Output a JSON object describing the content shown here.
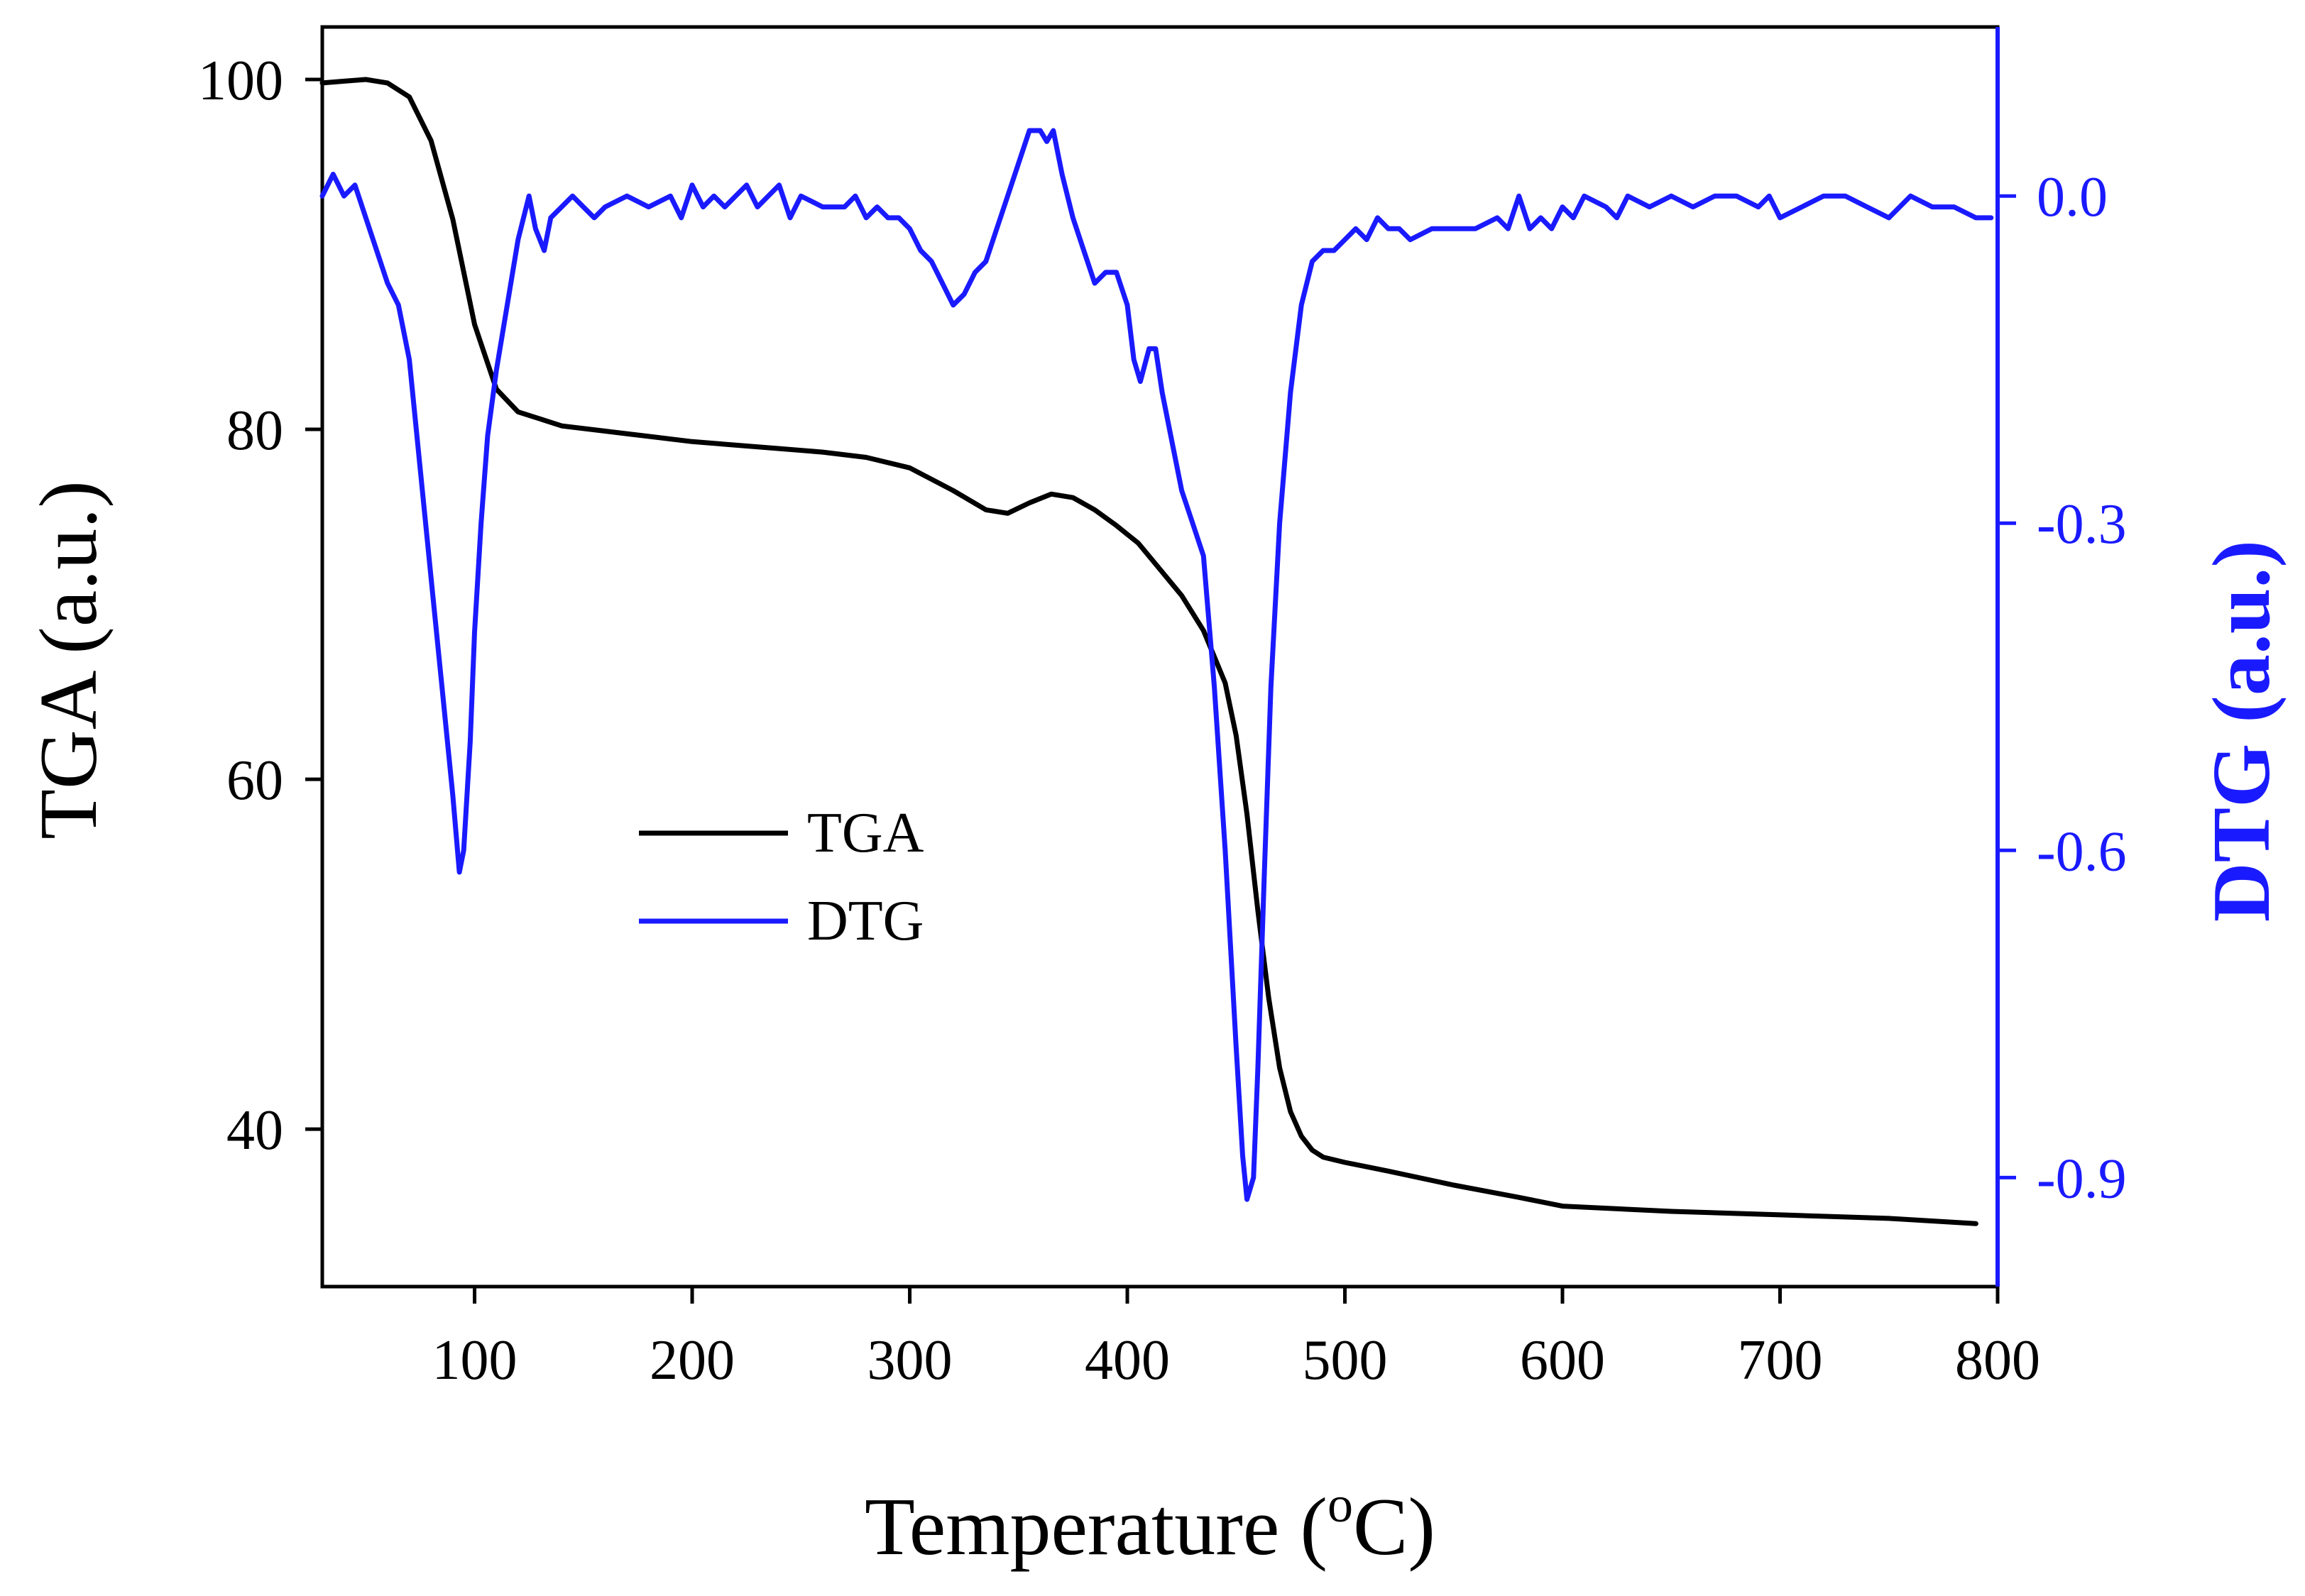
{
  "chart_data": {
    "type": "line",
    "title": "",
    "xlabel": "Temperature (",
    "xlabel_superscript": "o",
    "xlabel_suffix": "C)",
    "ylabel_left": "TGA (a.u.)",
    "ylabel_right": "DTG (a.u.)",
    "xlim": [
      30,
      800
    ],
    "ylim_left": [
      31,
      103
    ],
    "ylim_right": [
      -1.0,
      0.155
    ],
    "x_ticks": [
      100,
      200,
      300,
      400,
      500,
      600,
      700,
      800
    ],
    "x_tick_labels": [
      "100",
      "200",
      "300",
      "400",
      "500",
      "600",
      "700",
      "800"
    ],
    "y_left_ticks": [
      40,
      60,
      80,
      100
    ],
    "y_left_tick_labels": [
      "40",
      "60",
      "80",
      "100"
    ],
    "y_right_ticks": [
      -0.9,
      -0.6,
      -0.3,
      0.0
    ],
    "y_right_tick_labels": [
      "-0.9",
      "-0.6",
      "-0.3",
      "0.0"
    ],
    "legend_position": "center-left",
    "colors": {
      "tga": "#000000",
      "dtg": "#1a1aff",
      "axis": "#000000",
      "right_axis": "#1a1aff"
    },
    "series": [
      {
        "name": "TGA",
        "axis": "left",
        "x": [
          30,
          40,
          50,
          60,
          70,
          80,
          90,
          100,
          110,
          120,
          130,
          140,
          160,
          180,
          200,
          220,
          240,
          260,
          280,
          300,
          320,
          335,
          345,
          355,
          365,
          375,
          385,
          395,
          405,
          415,
          425,
          435,
          445,
          450,
          455,
          460,
          465,
          470,
          475,
          480,
          485,
          490,
          500,
          520,
          550,
          580,
          600,
          650,
          700,
          750,
          790
        ],
        "values": [
          99.8,
          99.9,
          100.0,
          99.8,
          99.0,
          96.5,
          92.0,
          86.0,
          82.3,
          81.0,
          80.6,
          80.2,
          79.9,
          79.6,
          79.3,
          79.1,
          78.9,
          78.7,
          78.4,
          77.8,
          76.5,
          75.4,
          75.2,
          75.8,
          76.3,
          76.1,
          75.4,
          74.5,
          73.5,
          72.0,
          70.5,
          68.5,
          65.5,
          62.5,
          58.0,
          52.5,
          47.5,
          43.5,
          41.0,
          39.6,
          38.8,
          38.4,
          38.1,
          37.6,
          36.8,
          36.1,
          35.6,
          35.3,
          35.1,
          34.9,
          34.6
        ]
      },
      {
        "name": "DTG",
        "axis": "right",
        "x": [
          30,
          35,
          40,
          45,
          50,
          55,
          60,
          65,
          70,
          75,
          80,
          85,
          90,
          93,
          95,
          98,
          100,
          103,
          106,
          110,
          115,
          120,
          125,
          128,
          132,
          135,
          140,
          145,
          150,
          155,
          160,
          170,
          180,
          190,
          195,
          200,
          205,
          210,
          215,
          220,
          225,
          230,
          235,
          240,
          245,
          250,
          260,
          270,
          275,
          280,
          285,
          290,
          295,
          300,
          305,
          310,
          315,
          320,
          325,
          330,
          335,
          340,
          345,
          350,
          355,
          360,
          363,
          366,
          370,
          375,
          380,
          385,
          390,
          395,
          400,
          403,
          406,
          410,
          413,
          416,
          420,
          425,
          430,
          435,
          440,
          445,
          450,
          453,
          455,
          458,
          460,
          463,
          466,
          470,
          475,
          480,
          485,
          490,
          495,
          500,
          505,
          510,
          515,
          520,
          525,
          530,
          540,
          550,
          560,
          570,
          575,
          580,
          585,
          590,
          595,
          600,
          605,
          610,
          620,
          625,
          630,
          640,
          650,
          660,
          670,
          680,
          690,
          695,
          700,
          710,
          720,
          730,
          740,
          750,
          760,
          770,
          780,
          790,
          797
        ],
        "values": [
          0.0,
          0.02,
          0.0,
          0.01,
          -0.02,
          -0.05,
          -0.08,
          -0.1,
          -0.15,
          -0.25,
          -0.35,
          -0.45,
          -0.55,
          -0.62,
          -0.6,
          -0.5,
          -0.4,
          -0.3,
          -0.22,
          -0.16,
          -0.1,
          -0.04,
          0.0,
          -0.03,
          -0.05,
          -0.02,
          -0.01,
          0.0,
          -0.01,
          -0.02,
          -0.01,
          0.0,
          -0.01,
          0.0,
          -0.02,
          0.01,
          -0.01,
          0.0,
          -0.01,
          0.0,
          0.01,
          -0.01,
          0.0,
          0.01,
          -0.02,
          0.0,
          -0.01,
          -0.01,
          0.0,
          -0.02,
          -0.01,
          -0.02,
          -0.02,
          -0.03,
          -0.05,
          -0.06,
          -0.08,
          -0.1,
          -0.09,
          -0.07,
          -0.06,
          -0.03,
          0.0,
          0.03,
          0.06,
          0.06,
          0.05,
          0.06,
          0.02,
          -0.02,
          -0.05,
          -0.08,
          -0.07,
          -0.07,
          -0.1,
          -0.15,
          -0.17,
          -0.14,
          -0.14,
          -0.18,
          -0.22,
          -0.27,
          -0.3,
          -0.33,
          -0.45,
          -0.6,
          -0.78,
          -0.88,
          -0.92,
          -0.9,
          -0.8,
          -0.62,
          -0.45,
          -0.3,
          -0.18,
          -0.1,
          -0.06,
          -0.05,
          -0.05,
          -0.04,
          -0.03,
          -0.04,
          -0.02,
          -0.03,
          -0.03,
          -0.04,
          -0.03,
          -0.03,
          -0.03,
          -0.02,
          -0.03,
          0.0,
          -0.03,
          -0.02,
          -0.03,
          -0.01,
          -0.02,
          0.0,
          -0.01,
          -0.02,
          0.0,
          -0.01,
          0.0,
          -0.01,
          0.0,
          0.0,
          -0.01,
          0.0,
          -0.02,
          -0.01,
          0.0,
          0.0,
          -0.01,
          -0.02,
          0.0,
          -0.01,
          -0.01,
          -0.02,
          -0.02
        ]
      }
    ]
  }
}
